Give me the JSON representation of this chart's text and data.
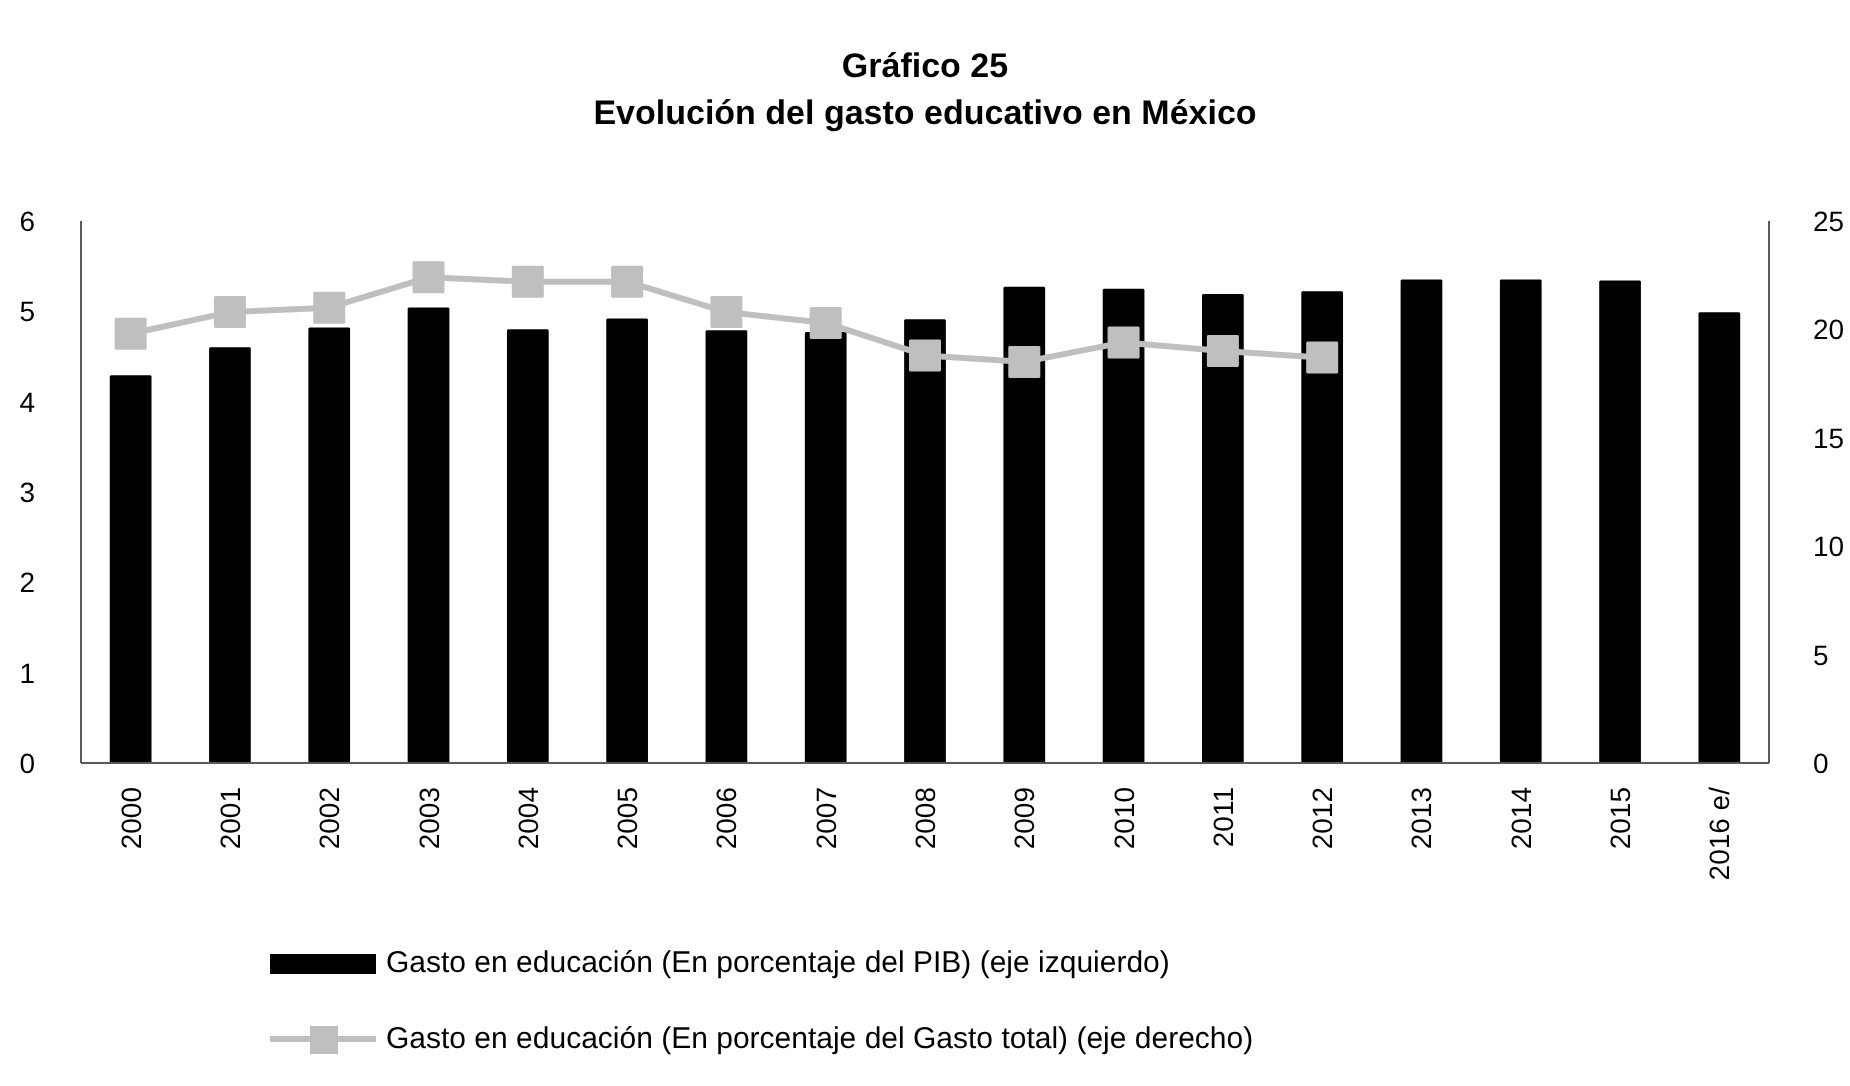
{
  "chart_data": {
    "type": "bar",
    "title": "Gráfico 25",
    "subtitle": "Evolución del gasto educativo en México",
    "categories": [
      "2000",
      "2001",
      "2002",
      "2003",
      "2004",
      "2005",
      "2006",
      "2007",
      "2008",
      "2009",
      "2010",
      "2011",
      "2012",
      "2013",
      "2014",
      "2015",
      "2016 e/"
    ],
    "series": [
      {
        "name": "Gasto en educación  (En porcentaje del PIB) (eje izquierdo)",
        "color": "#000000",
        "values": [
          4.28,
          4.59,
          4.81,
          5.03,
          4.79,
          4.91,
          4.78,
          4.76,
          4.9,
          5.26,
          5.24,
          5.18,
          5.21,
          5.34,
          5.34,
          5.33,
          4.98
        ]
      },
      {
        "name": "Gasto en educación (En porcentaje del Gasto total) (eje derecho)",
        "type": "line",
        "axis": "y2",
        "marker": "square",
        "color": "#bfbfbf",
        "values": [
          19.8,
          20.8,
          21.0,
          22.4,
          22.2,
          22.2,
          20.8,
          20.3,
          18.8,
          18.5,
          19.4,
          19.0,
          18.7,
          null,
          null,
          null,
          null
        ]
      }
    ],
    "ylim": [
      0,
      6
    ],
    "yticks": [
      0,
      1,
      2,
      3,
      4,
      5,
      6
    ],
    "y2lim": [
      0,
      25
    ],
    "y2ticks": [
      0,
      5,
      10,
      15,
      20,
      25
    ],
    "grid": false,
    "legend": "bottom"
  }
}
